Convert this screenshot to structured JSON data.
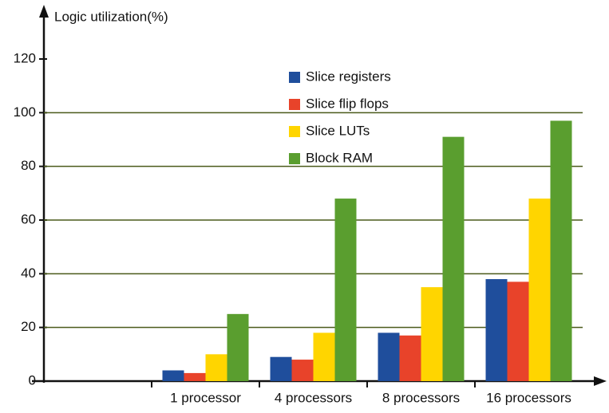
{
  "chart_data": {
    "type": "bar",
    "y_label": "Logic utilization(%)",
    "categories": [
      "1 processor",
      "4 processors",
      "8 processors",
      "16 processors"
    ],
    "series": [
      {
        "name": "Slice registers",
        "color": "#1f4e9c",
        "values": [
          4,
          9,
          18,
          38
        ]
      },
      {
        "name": "Slice flip flops",
        "color": "#e8432a",
        "values": [
          3,
          8,
          17,
          37
        ]
      },
      {
        "name": "Slice LUTs",
        "color": "#ffd500",
        "values": [
          10,
          18,
          35,
          68
        ]
      },
      {
        "name": "Block RAM",
        "color": "#5a9e2f",
        "values": [
          25,
          68,
          91,
          97
        ]
      }
    ],
    "ylim": [
      0,
      120
    ],
    "yticks": [
      0,
      20,
      40,
      60,
      80,
      100,
      120
    ],
    "grid": true
  }
}
